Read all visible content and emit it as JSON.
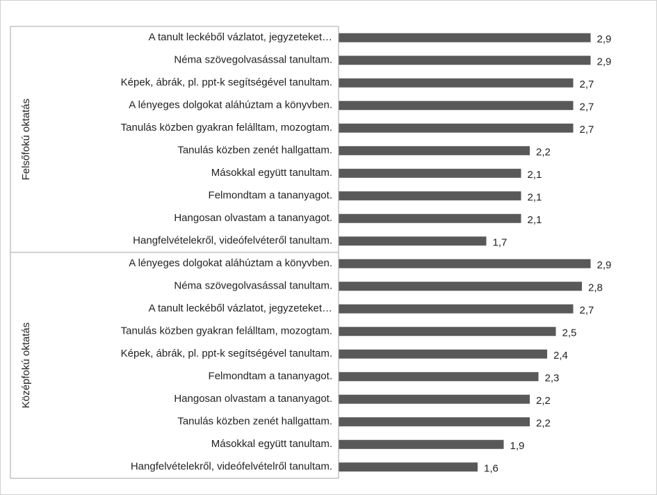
{
  "chart_data": {
    "type": "bar",
    "orientation": "horizontal",
    "color": "#595959",
    "xlim": [
      0,
      3
    ],
    "groups": [
      {
        "name": "Felsőfokú oktatás",
        "categories": [
          "A tanult leckéből vázlatot, jegyzeteket…",
          "Néma szövegolvasással tanultam.",
          "Képek, ábrák, pl. ppt-k segítségével tanultam.",
          "A lényeges dolgokat aláhúztam a könyvben.",
          "Tanulás közben gyakran felálltam, mozogtam.",
          "Tanulás közben zenét hallgattam.",
          "Másokkal együtt tanultam.",
          "Felmondtam a tananyagot.",
          "Hangosan olvastam a tananyagot.",
          "Hangfelvételekről, videófelvéteről tanultam."
        ],
        "values": [
          2.9,
          2.9,
          2.7,
          2.7,
          2.7,
          2.2,
          2.1,
          2.1,
          2.1,
          1.7
        ],
        "value_labels": [
          "2,9",
          "2,9",
          "2,7",
          "2,7",
          "2,7",
          "2,2",
          "2,1",
          "2,1",
          "2,1",
          "1,7"
        ]
      },
      {
        "name": "Középfokú oktatás",
        "categories": [
          "A lényeges dolgokat aláhúztam a könyvben.",
          "Néma szövegolvasással tanultam.",
          "A tanult leckéből vázlatot, jegyzeteket…",
          "Tanulás közben gyakran felálltam, mozogtam.",
          "Képek, ábrák, pl. ppt-k segítségével tanultam.",
          "Felmondtam a tananyagot.",
          "Hangosan olvastam a tananyagot.",
          "Tanulás közben zenét hallgattam.",
          "Másokkal együtt tanultam.",
          "Hangfelvételekről, videófelvételről tanultam."
        ],
        "values": [
          2.9,
          2.8,
          2.7,
          2.5,
          2.4,
          2.3,
          2.2,
          2.2,
          1.9,
          1.6
        ],
        "value_labels": [
          "2,9",
          "2,8",
          "2,7",
          "2,5",
          "2,4",
          "2,3",
          "2,2",
          "2,2",
          "1,9",
          "1,6"
        ]
      }
    ]
  }
}
